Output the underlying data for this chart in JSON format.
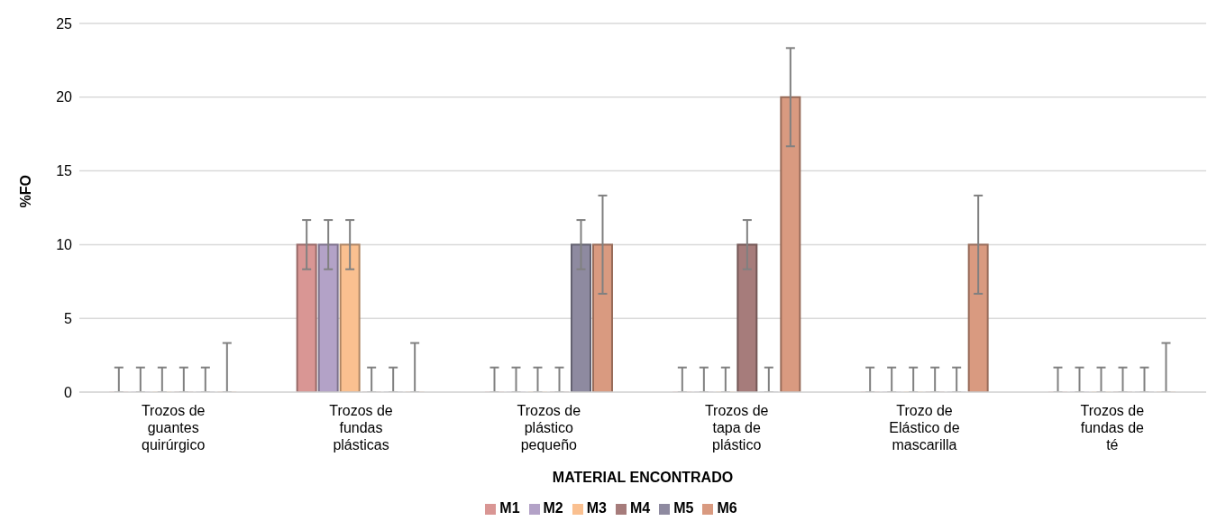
{
  "chart_data": {
    "type": "bar",
    "xlabel": "MATERIAL ENCONTRADO",
    "ylabel": "%FO",
    "categories": [
      "Trozos de guantes quirúrgico",
      "Trozos de fundas plásticas",
      "Trozos de plástico pequeño",
      "Trozos de tapa de plástico",
      "Trozo de Elástico de mascarilla",
      "Trozos de fundas de té"
    ],
    "series": [
      {
        "name": "M1",
        "color": "#d99694",
        "values": [
          0,
          10,
          0,
          0,
          0,
          0
        ],
        "errors": [
          [
            0,
            1.67
          ],
          1.67,
          [
            0,
            1.67
          ],
          [
            0,
            1.67
          ],
          [
            0,
            1.67
          ],
          [
            0,
            1.67
          ]
        ]
      },
      {
        "name": "M2",
        "color": "#b3a2c7",
        "values": [
          0,
          10,
          0,
          0,
          0,
          0
        ],
        "errors": [
          [
            0,
            1.67
          ],
          1.67,
          [
            0,
            1.67
          ],
          [
            0,
            1.67
          ],
          [
            0,
            1.67
          ],
          [
            0,
            1.67
          ]
        ]
      },
      {
        "name": "M3",
        "color": "#fac090",
        "values": [
          0,
          10,
          0,
          0,
          0,
          0
        ],
        "errors": [
          [
            0,
            1.67
          ],
          1.67,
          [
            0,
            1.67
          ],
          [
            0,
            1.67
          ],
          [
            0,
            1.67
          ],
          [
            0,
            1.67
          ]
        ]
      },
      {
        "name": "M4",
        "color": "#a67c7b",
        "values": [
          0,
          0,
          0,
          10,
          0,
          0
        ],
        "errors": [
          [
            0,
            1.67
          ],
          [
            0,
            1.67
          ],
          [
            0,
            1.67
          ],
          1.67,
          [
            0,
            1.67
          ],
          [
            0,
            1.67
          ]
        ]
      },
      {
        "name": "M5",
        "color": "#8e8aa0",
        "values": [
          0,
          0,
          10,
          0,
          0,
          0
        ],
        "errors": [
          [
            0,
            1.67
          ],
          [
            0,
            1.67
          ],
          1.67,
          [
            0,
            1.67
          ],
          [
            0,
            1.67
          ],
          [
            0,
            1.67
          ]
        ]
      },
      {
        "name": "M6",
        "color": "#d99a80",
        "values": [
          0,
          0,
          10,
          20,
          10,
          0
        ],
        "errors": [
          [
            0,
            3.33
          ],
          [
            0,
            3.33
          ],
          3.33,
          3.33,
          3.33,
          [
            0,
            3.33
          ]
        ]
      }
    ],
    "ylim": [
      0,
      25
    ],
    "yticks": [
      0,
      5,
      10,
      15,
      20,
      25
    ],
    "grid": "y",
    "legend": "bottom"
  }
}
